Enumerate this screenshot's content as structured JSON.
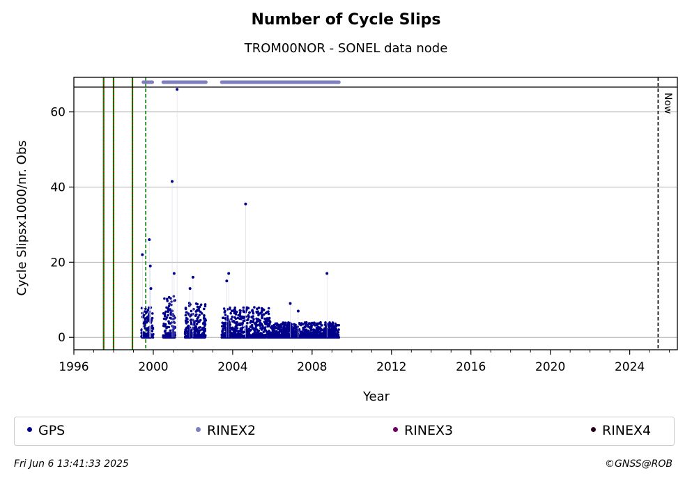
{
  "chart_data": {
    "type": "scatter",
    "title": "Number of Cycle Slips",
    "subtitle": "TROM00NOR - SONEL data node",
    "xlabel": "Year",
    "ylabel": "Cycle Slipsx1000/nr. Obs",
    "xlim": [
      1996,
      2026.4
    ],
    "ylim": [
      -3.3,
      69.2
    ],
    "xticks": [
      1996,
      2000,
      2004,
      2008,
      2012,
      2016,
      2020,
      2024
    ],
    "xtick_labels": [
      "1996",
      "2000",
      "2004",
      "2008",
      "2012",
      "2016",
      "2020",
      "2024"
    ],
    "yticks": [
      0,
      20,
      40,
      60
    ],
    "ytick_labels": [
      "0",
      "20",
      "40",
      "60"
    ],
    "grid": "horizontal",
    "legend_position": "bottom",
    "now_label": "Now",
    "now_year": 2025.43,
    "red_green_lines": [
      1997.5,
      1998.0,
      1998.95
    ],
    "green_dashed_lines": [
      1999.62
    ],
    "rinex2_coverage": [
      [
        1999.5,
        1999.95
      ],
      [
        2000.5,
        2002.65
      ],
      [
        2003.45,
        2009.35
      ]
    ],
    "series": [
      {
        "name": "GPS",
        "color": "#00008b",
        "spikes": [
          [
            1999.45,
            22
          ],
          [
            1999.8,
            26
          ],
          [
            1999.85,
            19
          ],
          [
            1999.88,
            13
          ],
          [
            2000.95,
            41.5
          ],
          [
            2001.2,
            66
          ],
          [
            2001.05,
            17
          ],
          [
            2002.0,
            16
          ],
          [
            2001.85,
            13
          ],
          [
            2003.7,
            15
          ],
          [
            2003.8,
            17
          ],
          [
            2004.65,
            35.5
          ],
          [
            2006.9,
            9
          ],
          [
            2008.75,
            17
          ],
          [
            2007.3,
            7
          ]
        ],
        "clusters": [
          {
            "from": 1999.4,
            "to": 2000.0,
            "max": 8
          },
          {
            "from": 2000.5,
            "to": 2001.1,
            "max": 11
          },
          {
            "from": 2001.6,
            "to": 2002.65,
            "max": 10
          },
          {
            "from": 2003.45,
            "to": 2005.9,
            "max": 8
          },
          {
            "from": 2005.9,
            "to": 2009.35,
            "max": 4
          }
        ]
      }
    ],
    "legend": [
      {
        "label": "GPS",
        "color": "#00008b"
      },
      {
        "label": "RINEX2",
        "color": "#7f7fbf"
      },
      {
        "label": "RINEX3",
        "color": "#6b0060"
      },
      {
        "label": "RINEX4",
        "color": "#2a0018"
      }
    ]
  },
  "footer": {
    "timestamp": "Fri Jun  6 13:41:33 2025",
    "credit": "©GNSS@ROB"
  }
}
